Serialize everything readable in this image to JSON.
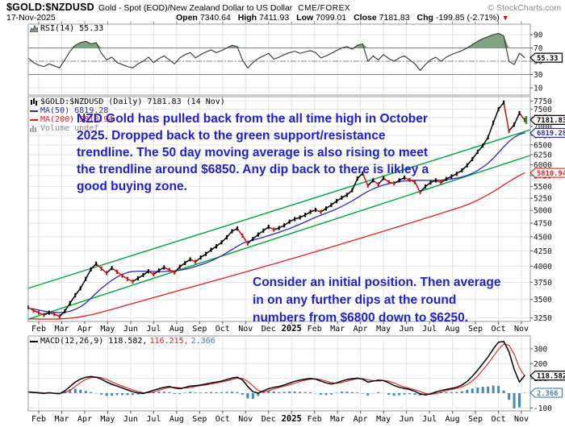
{
  "header": {
    "symbol": "$GOLD:$NZDUSD",
    "description": "Gold - Spot (EOD)/New Zealand Dollar to US Dollar",
    "exchange": "CME/FOREX",
    "credit": "© StockCharts.com",
    "date": "17-Nov-2025",
    "open_label": "Open",
    "open": "7340.64",
    "high_label": "High",
    "high": "7411.93",
    "low_label": "Low",
    "low": "7099.01",
    "close_label": "Close",
    "close": "7181.83",
    "chg_label": "Chg",
    "chg": "-199.85 (-2.71%)",
    "chg_arrow": "▼"
  },
  "legends": {
    "rsi": "RSI(14) 55.33",
    "price_main": "$GOLD:$NZDUSD (Daily) 7181.83 (14 Nov)",
    "ma50": "MA(50) 6819.28",
    "ma200": "MA(200) 5810.94",
    "volume": "Volume undef",
    "macd_black": "MACD(12,26,9) 118.582,",
    "macd_red": "116.215,",
    "macd_blue": "2.366"
  },
  "annotations": {
    "note1": [
      "NZD Gold has pulled back from the all time high in October",
      "2025. Dropped back to the green support/resistance",
      "trendline. The 50 day moving average is also rising to meet",
      "the trendline around $6850. Any dip back to there is likley a",
      "good buying zone."
    ],
    "note2": [
      "Consider an initial position. Then average",
      "in on any further dips at the round",
      "numbers from $6800 down to $6250."
    ]
  },
  "colors": {
    "annotation_blue": "#1e1ed2",
    "ma50_blue": "#2b2bbe",
    "ma200_red": "#e02020",
    "candle_up": "#000000",
    "candle_down": "#cc1111",
    "trendline_green": "#00a33e",
    "rsi_fill": "#82a382",
    "rsi_line": "#333333",
    "macd_hist": "#4688b8",
    "macd_line": "#000000",
    "signal_line": "#e02020",
    "grid": "#e5e5e5",
    "panel_border": "#999999",
    "band_line": "#808080",
    "axis_text": "#111111"
  },
  "x_labels": [
    "Feb",
    "Mar",
    "Apr",
    "May",
    "Jun",
    "Jul",
    "Aug",
    "Sep",
    "Oct",
    "Nov",
    "Dec",
    "2025",
    "Feb",
    "Mar",
    "Apr",
    "May",
    "Jun",
    "Jul",
    "Aug",
    "Sep",
    "Oct",
    "Nov"
  ],
  "chart_data": [
    {
      "id": "rsi",
      "type": "line",
      "title": "RSI(14)",
      "last": 55.33,
      "ylim": [
        0,
        100
      ],
      "ticks": [
        90,
        70,
        50,
        30,
        10
      ],
      "bands": {
        "overbought": 70,
        "oversold": 30,
        "mid": 50
      },
      "callouts": [
        {
          "text": "55.33",
          "value": 55.33,
          "color": "#000000"
        }
      ],
      "values": [
        55,
        48,
        44,
        42,
        46,
        43,
        40,
        52,
        65,
        74,
        78,
        80,
        76,
        78,
        62,
        52,
        56,
        48,
        45,
        42,
        40,
        46,
        50,
        56,
        48,
        54,
        58,
        52,
        46,
        55,
        60,
        63,
        55,
        60,
        64,
        67,
        63,
        66,
        70,
        74,
        72,
        52,
        40,
        48,
        54,
        58,
        62,
        53,
        56,
        60,
        63,
        65,
        62,
        64,
        66,
        63,
        55,
        58,
        62,
        66,
        70,
        72,
        68,
        74,
        76,
        50,
        58,
        52,
        60,
        54,
        50,
        55,
        58,
        52,
        46,
        36,
        45,
        52,
        56,
        50,
        56,
        60,
        63,
        66,
        70,
        75,
        80,
        84,
        87,
        90,
        92,
        88,
        50,
        45,
        62,
        55.33
      ]
    },
    {
      "id": "price",
      "type": "candlestick",
      "title": "$GOLD:$NZDUSD (Daily)",
      "scale": "log",
      "last": 7181.83,
      "last_date": "14 Nov",
      "ylim": [
        3206,
        7883
      ],
      "ticks": [
        7750,
        7500,
        7250,
        7000,
        6750,
        6500,
        6250,
        6000,
        5750,
        5500,
        5250,
        5000,
        4750,
        4500,
        4250,
        4000,
        3750,
        3500,
        3250
      ],
      "callouts": [
        {
          "text": "7181.83",
          "value": 7181.83,
          "color": "#000000"
        },
        {
          "text": "6819.28",
          "value": 6819.28,
          "color": "#2b2bbe"
        },
        {
          "text": "5810.94",
          "value": 5810.94,
          "color": "#e02020"
        }
      ],
      "series": [
        {
          "name": "close",
          "values": [
            3390,
            3350,
            3320,
            3290,
            3320,
            3300,
            3270,
            3340,
            3450,
            3560,
            3660,
            3800,
            3950,
            4040,
            3960,
            3890,
            3970,
            3910,
            3850,
            3800,
            3760,
            3810,
            3860,
            3920,
            3870,
            3930,
            3980,
            3940,
            3900,
            3990,
            4050,
            4110,
            4070,
            4140,
            4200,
            4270,
            4330,
            4400,
            4490,
            4600,
            4650,
            4520,
            4380,
            4460,
            4540,
            4610,
            4680,
            4630,
            4660,
            4710,
            4780,
            4830,
            4860,
            4910,
            4970,
            5010,
            4970,
            5040,
            5110,
            5190,
            5260,
            5320,
            5420,
            5680,
            5800,
            5520,
            5640,
            5550,
            5690,
            5600,
            5570,
            5640,
            5700,
            5650,
            5600,
            5380,
            5500,
            5590,
            5640,
            5590,
            5670,
            5730,
            5790,
            5870,
            5990,
            6140,
            6320,
            6480,
            6700,
            7100,
            7500,
            7700,
            6870,
            7050,
            7380,
            7181.83
          ]
        },
        {
          "name": "MA(50)",
          "values": [
            3380,
            3370,
            3355,
            3340,
            3330,
            3325,
            3320,
            3325,
            3340,
            3365,
            3400,
            3450,
            3520,
            3590,
            3660,
            3720,
            3780,
            3830,
            3870,
            3900,
            3915,
            3920,
            3920,
            3918,
            3915,
            3912,
            3915,
            3920,
            3925,
            3935,
            3950,
            3970,
            3995,
            4020,
            4050,
            4085,
            4125,
            4170,
            4220,
            4275,
            4330,
            4380,
            4415,
            4440,
            4465,
            4490,
            4520,
            4550,
            4580,
            4615,
            4650,
            4690,
            4730,
            4775,
            4820,
            4865,
            4905,
            4945,
            4985,
            5030,
            5080,
            5135,
            5195,
            5260,
            5330,
            5395,
            5450,
            5495,
            5535,
            5565,
            5590,
            5610,
            5625,
            5635,
            5640,
            5640,
            5638,
            5638,
            5640,
            5645,
            5655,
            5670,
            5690,
            5715,
            5750,
            5800,
            5865,
            5945,
            6040,
            6160,
            6300,
            6450,
            6590,
            6700,
            6780,
            6819.28
          ]
        },
        {
          "name": "MA(200)",
          "values": [
            3240,
            3238,
            3236,
            3235,
            3235,
            3236,
            3238,
            3242,
            3248,
            3256,
            3266,
            3278,
            3292,
            3308,
            3326,
            3345,
            3364,
            3384,
            3404,
            3424,
            3444,
            3464,
            3484,
            3505,
            3526,
            3547,
            3568,
            3589,
            3610,
            3631,
            3652,
            3673,
            3694,
            3716,
            3738,
            3760,
            3782,
            3804,
            3826,
            3849,
            3872,
            3895,
            3918,
            3941,
            3964,
            3988,
            4012,
            4036,
            4060,
            4085,
            4110,
            4135,
            4160,
            4186,
            4212,
            4238,
            4264,
            4291,
            4318,
            4345,
            4372,
            4400,
            4428,
            4456,
            4484,
            4513,
            4542,
            4571,
            4600,
            4630,
            4660,
            4690,
            4720,
            4751,
            4782,
            4813,
            4845,
            4877,
            4909,
            4942,
            4975,
            5008,
            5042,
            5076,
            5115,
            5160,
            5210,
            5265,
            5325,
            5390,
            5460,
            5535,
            5610,
            5680,
            5750,
            5810.94
          ]
        }
      ],
      "trendlines": [
        {
          "name": "upper-support-resistance",
          "start": 3660,
          "end": 6905
        },
        {
          "name": "lower-channel-support",
          "start": 3235,
          "end": 6230
        }
      ]
    },
    {
      "id": "macd",
      "type": "line+histogram",
      "title": "MACD(12,26,9)",
      "ticks": [
        300,
        200,
        100,
        0,
        -100
      ],
      "callouts": [
        {
          "text": "118.582",
          "value": 118.582,
          "color": "#000000"
        },
        {
          "text": "2.366",
          "value": 2.366,
          "color": "#3d7fae"
        }
      ],
      "series": [
        {
          "name": "macd",
          "values": [
            8,
            5,
            2,
            -2,
            3,
            -1,
            -4,
            15,
            45,
            75,
            95,
            108,
            112,
            108,
            95,
            75,
            60,
            48,
            35,
            22,
            10,
            2,
            -2,
            8,
            20,
            30,
            40,
            45,
            35,
            30,
            38,
            48,
            50,
            55,
            62,
            70,
            75,
            82,
            92,
            102,
            108,
            90,
            45,
            10,
            0,
            15,
            30,
            40,
            45,
            55,
            68,
            80,
            88,
            95,
            100,
            95,
            82,
            70,
            62,
            70,
            82,
            92,
            98,
            102,
            95,
            75,
            82,
            88,
            85,
            70,
            52,
            40,
            32,
            25,
            12,
            -5,
            -12,
            -5,
            8,
            18,
            25,
            32,
            40,
            55,
            80,
            115,
            155,
            200,
            245,
            300,
            345,
            350,
            280,
            160,
            75,
            118.582
          ]
        },
        {
          "name": "signal",
          "values": [
            8,
            6.5,
            5,
            1.7,
            1,
            0,
            -0.7,
            3.3,
            18.7,
            45,
            71.7,
            92.7,
            105,
            109.3,
            105,
            92.7,
            76.7,
            61,
            47.7,
            35,
            22.3,
            11.3,
            3.3,
            2.7,
            8.7,
            19.3,
            30,
            38.3,
            40,
            36.7,
            34.3,
            38.7,
            45.3,
            51,
            55.7,
            62.3,
            69,
            75.7,
            83,
            92,
            100.7,
            100,
            81,
            48.3,
            18.3,
            8.3,
            15,
            28.3,
            38.3,
            46.7,
            56,
            67.7,
            78.7,
            87.7,
            94.3,
            96.7,
            92.3,
            82.3,
            71.3,
            67.3,
            71.3,
            81.3,
            90.7,
            97.3,
            98.3,
            90.7,
            84,
            81.7,
            85,
            81,
            69,
            54,
            41.3,
            32.3,
            23,
            10.7,
            -1.7,
            -7.3,
            -3,
            7,
            17,
            25,
            32.3,
            42.3,
            58.3,
            83.3,
            116.7,
            156.7,
            200,
            248.3,
            296.7,
            331.7,
            325,
            263.3,
            171.7,
            116.215
          ]
        }
      ]
    }
  ]
}
